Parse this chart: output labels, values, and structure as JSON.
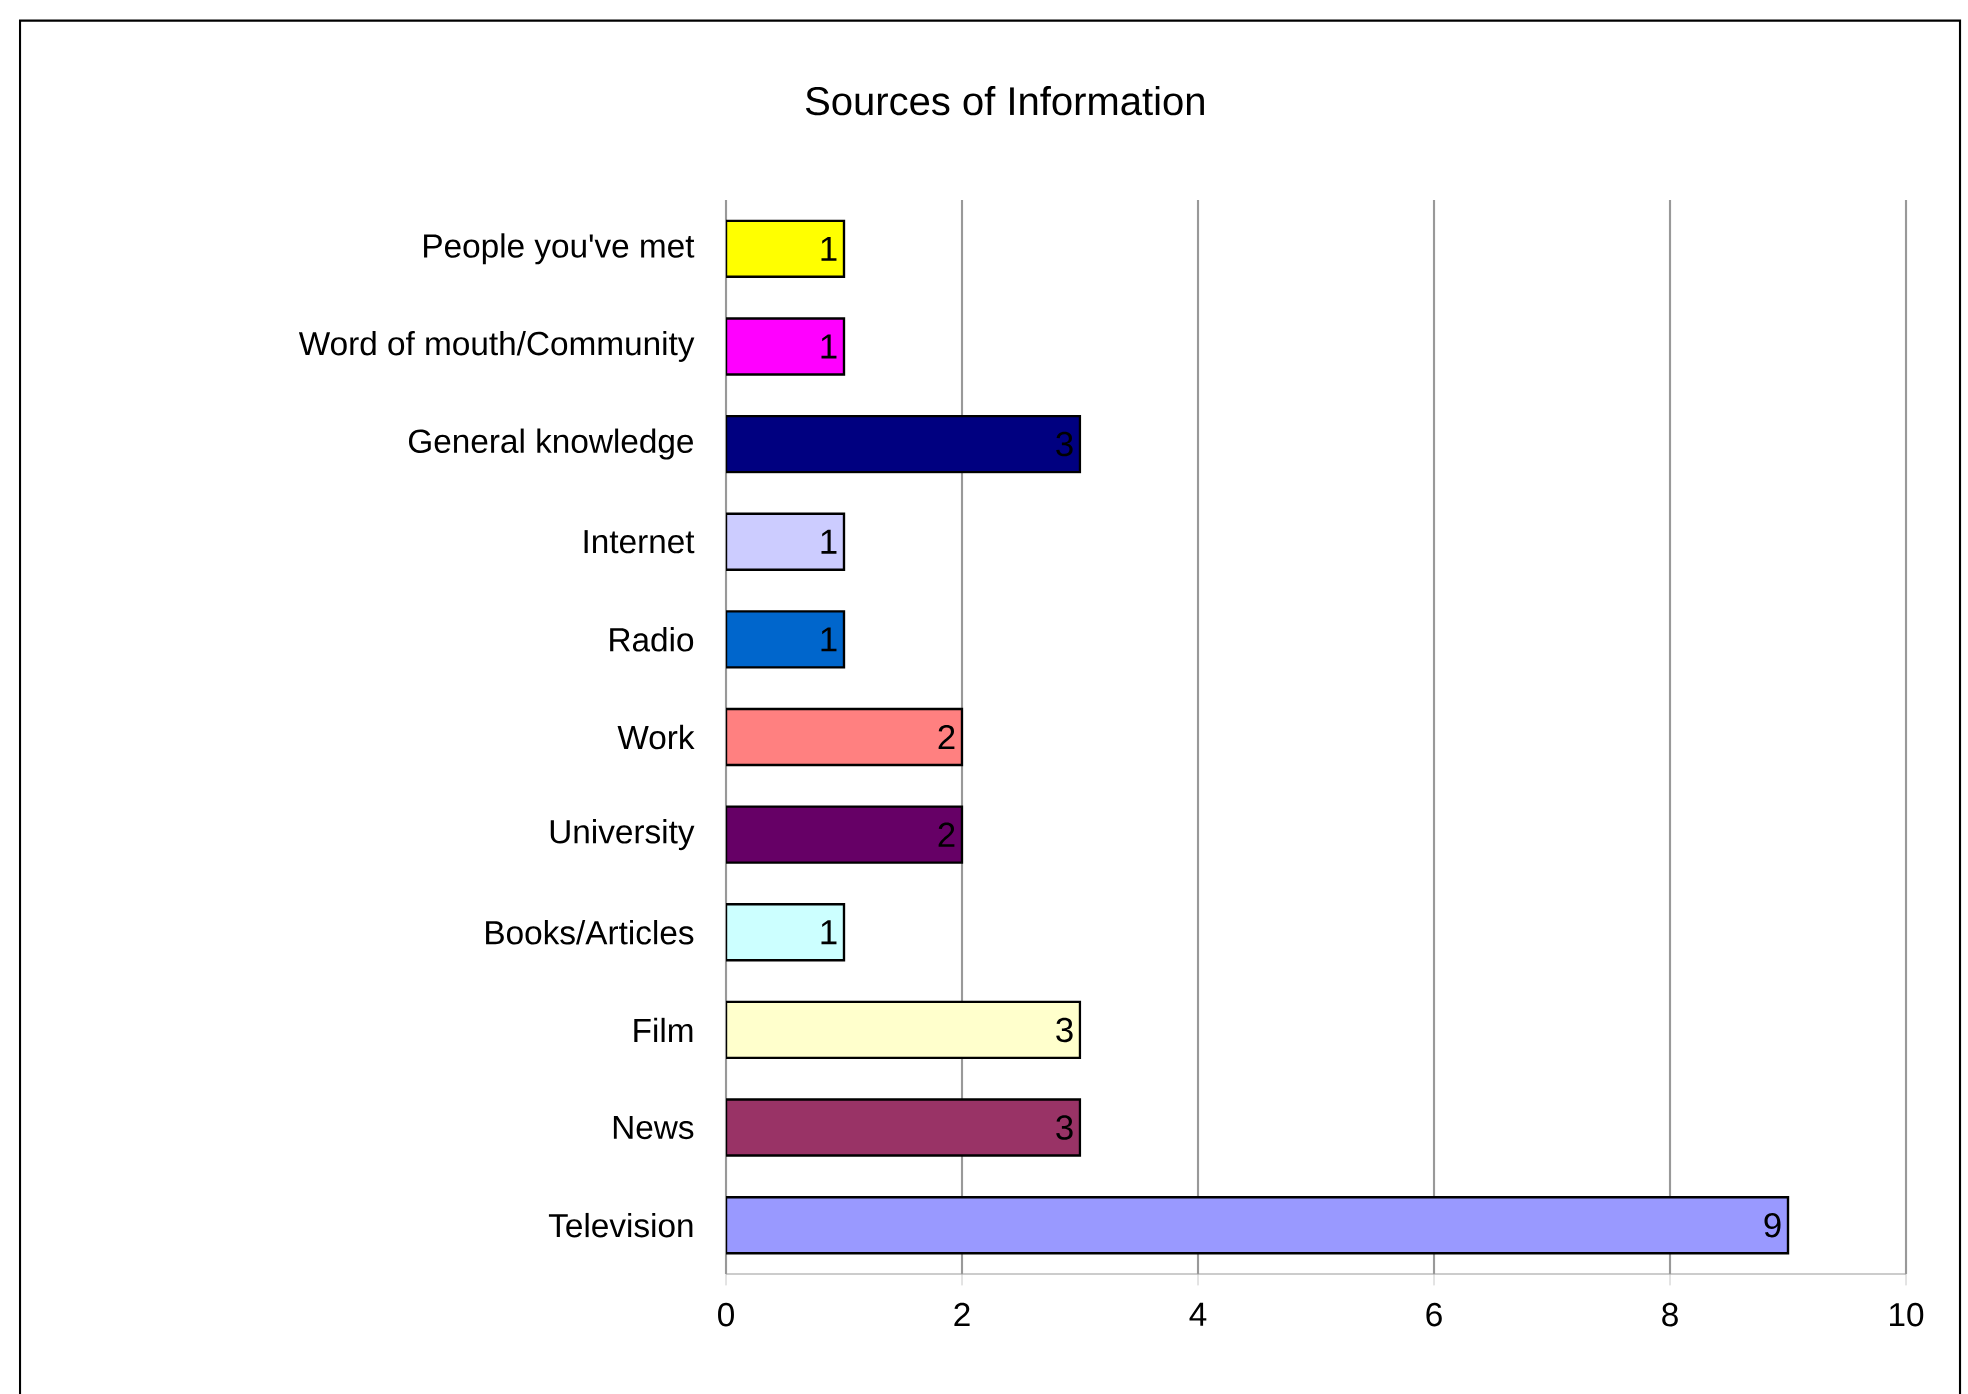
{
  "chart_data": {
    "type": "bar",
    "orientation": "horizontal",
    "title": "Sources of Information",
    "categories": [
      "People you've met",
      "Word of mouth/Community",
      "General knowledge",
      "Internet",
      "Radio",
      "Work",
      "University",
      "Books/Articles",
      "Film",
      "News",
      "Television"
    ],
    "values": [
      1,
      1,
      3,
      1,
      1,
      2,
      2,
      1,
      3,
      3,
      9
    ],
    "colors": [
      "#ffff00",
      "#ff00ff",
      "#000080",
      "#ccccff",
      "#0066cc",
      "#ff8080",
      "#660066",
      "#ccffff",
      "#ffffcc",
      "#993366",
      "#9999ff"
    ],
    "xlim": [
      0,
      10
    ],
    "xticks": [
      0,
      2,
      4,
      6,
      8,
      10
    ],
    "grid": "x",
    "data_labels": true
  }
}
